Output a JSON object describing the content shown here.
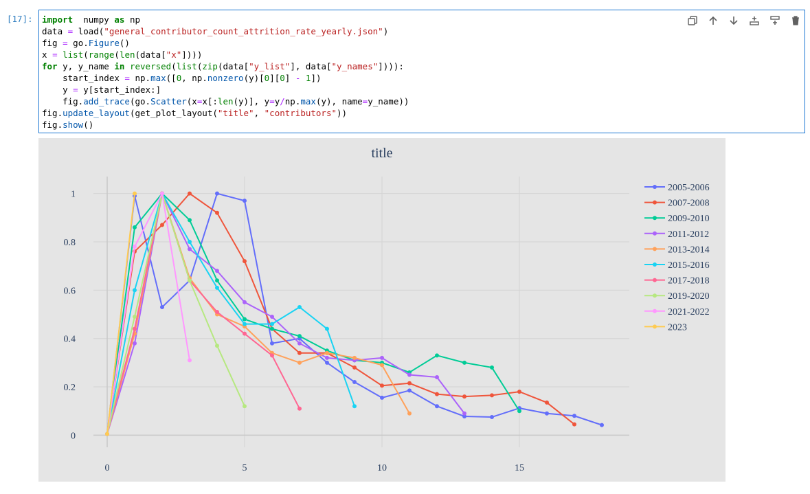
{
  "cell": {
    "prompt": "[17]:",
    "code_lines": [
      [
        [
          "kw",
          "import"
        ],
        [
          "",
          "  numpy "
        ],
        [
          "kw",
          "as"
        ],
        [
          "",
          " np"
        ]
      ],
      [
        [
          "",
          "data "
        ],
        [
          "op",
          "="
        ],
        [
          "",
          " load("
        ],
        [
          "st",
          "\"general_contributor_count_attrition_rate_yearly.json\""
        ],
        [
          "",
          ")"
        ]
      ],
      [
        [
          "",
          "fig "
        ],
        [
          "op",
          "="
        ],
        [
          "",
          " go."
        ],
        [
          "fn",
          "Figure"
        ],
        [
          "",
          "()"
        ]
      ],
      [
        [
          "",
          "x "
        ],
        [
          "op",
          "="
        ],
        [
          "",
          " "
        ],
        [
          "bi",
          "list"
        ],
        [
          "",
          "("
        ],
        [
          "bi",
          "range"
        ],
        [
          "",
          "("
        ],
        [
          "bi",
          "len"
        ],
        [
          "",
          "(data["
        ],
        [
          "st",
          "\"x\""
        ],
        [
          "",
          "])))"
        ]
      ],
      [
        [
          "kw",
          "for"
        ],
        [
          "",
          " y, y_name "
        ],
        [
          "kw",
          "in"
        ],
        [
          "",
          " "
        ],
        [
          "bi",
          "reversed"
        ],
        [
          "",
          "("
        ],
        [
          "bi",
          "list"
        ],
        [
          "",
          "("
        ],
        [
          "bi",
          "zip"
        ],
        [
          "",
          "(data["
        ],
        [
          "st",
          "\"y_list\""
        ],
        [
          "",
          "], data["
        ],
        [
          "st",
          "\"y_names\""
        ],
        [
          "",
          "]))):"
        ]
      ],
      [
        [
          "",
          "    start_index "
        ],
        [
          "op",
          "="
        ],
        [
          "",
          " np."
        ],
        [
          "fn",
          "max"
        ],
        [
          "",
          "(["
        ],
        [
          "nu",
          "0"
        ],
        [
          "",
          ", np."
        ],
        [
          "fn",
          "nonzero"
        ],
        [
          "",
          "(y)["
        ],
        [
          "nu",
          "0"
        ],
        [
          "",
          "]["
        ],
        [
          "nu",
          "0"
        ],
        [
          "",
          "] "
        ],
        [
          "op",
          "-"
        ],
        [
          "",
          " "
        ],
        [
          "nu",
          "1"
        ],
        [
          "",
          "])"
        ]
      ],
      [
        [
          "",
          "    y "
        ],
        [
          "op",
          "="
        ],
        [
          "",
          " y[start_index:]"
        ]
      ],
      [
        [
          "",
          "    fig."
        ],
        [
          "fn",
          "add_trace"
        ],
        [
          "",
          "(go."
        ],
        [
          "fn",
          "Scatter"
        ],
        [
          "",
          "(x"
        ],
        [
          "op",
          "="
        ],
        [
          "",
          "x[:"
        ],
        [
          "bi",
          "len"
        ],
        [
          "",
          "(y)], y"
        ],
        [
          "op",
          "="
        ],
        [
          "",
          "y"
        ],
        [
          "op",
          "/"
        ],
        [
          "",
          "np."
        ],
        [
          "fn",
          "max"
        ],
        [
          "",
          "(y), name"
        ],
        [
          "op",
          "="
        ],
        [
          "",
          "y_name))"
        ]
      ],
      [
        [
          "",
          "fig."
        ],
        [
          "fn",
          "update_layout"
        ],
        [
          "",
          "(get_plot_layout("
        ],
        [
          "st",
          "\"title\""
        ],
        [
          "",
          ", "
        ],
        [
          "st",
          "\"contributors\""
        ],
        [
          "",
          "))"
        ]
      ],
      [
        [
          "",
          "fig."
        ],
        [
          "fn",
          "show"
        ],
        [
          "",
          "()"
        ]
      ]
    ],
    "toolbar": [
      {
        "name": "duplicate-cell-button",
        "icon": "duplicate-icon"
      },
      {
        "name": "move-up-button",
        "icon": "arrow-up-icon"
      },
      {
        "name": "move-down-button",
        "icon": "arrow-down-icon"
      },
      {
        "name": "insert-above-button",
        "icon": "insert-above-icon"
      },
      {
        "name": "insert-below-button",
        "icon": "insert-below-icon"
      },
      {
        "name": "delete-cell-button",
        "icon": "trash-icon"
      }
    ]
  },
  "colors": {
    "plot_bg": "#e5e5e5",
    "grid": "#d4d4d4",
    "text": "#2a3f5f",
    "prompt": "#307fc1",
    "cell_border": "#1976d2"
  },
  "chart_data": {
    "type": "line",
    "title": "title",
    "xlabel": "",
    "ylabel": "",
    "xlim": [
      -0.5,
      19
    ],
    "ylim": [
      -0.05,
      1.07
    ],
    "xticks": [
      0,
      5,
      10,
      15
    ],
    "yticks": [
      0,
      0.2,
      0.4,
      0.6,
      0.8,
      1
    ],
    "ytick_labels": [
      "0",
      "0.2",
      "0.4",
      "0.6",
      "0.8",
      "1"
    ],
    "grid": true,
    "legend_position": "right",
    "series": [
      {
        "name": "2005-2006",
        "color": "#636efa",
        "x": [
          0,
          1,
          2,
          3,
          4,
          5,
          6,
          7,
          8,
          9,
          10,
          11,
          12,
          13,
          14,
          15,
          16,
          17,
          18
        ],
        "y": [
          0.005,
          0.99,
          0.53,
          0.64,
          1.0,
          0.97,
          0.38,
          0.4,
          0.3,
          0.22,
          0.155,
          0.185,
          0.12,
          0.078,
          0.075,
          0.112,
          0.09,
          0.08,
          0.042
        ]
      },
      {
        "name": "2007-2008",
        "color": "#ef553b",
        "x": [
          0,
          1,
          2,
          3,
          4,
          5,
          6,
          7,
          8,
          9,
          10,
          11,
          12,
          13,
          14,
          15,
          16,
          17
        ],
        "y": [
          0.005,
          0.76,
          0.87,
          1.0,
          0.92,
          0.72,
          0.44,
          0.34,
          0.34,
          0.28,
          0.205,
          0.215,
          0.17,
          0.16,
          0.165,
          0.18,
          0.135,
          0.045
        ]
      },
      {
        "name": "2009-2010",
        "color": "#00cc96",
        "x": [
          0,
          1,
          2,
          3,
          4,
          5,
          6,
          7,
          8,
          9,
          10,
          11,
          12,
          13,
          14,
          15
        ],
        "y": [
          0.005,
          0.86,
          1.0,
          0.89,
          0.64,
          0.48,
          0.44,
          0.41,
          0.35,
          0.31,
          0.3,
          0.26,
          0.33,
          0.3,
          0.28,
          0.1
        ]
      },
      {
        "name": "2011-2012",
        "color": "#ab63fa",
        "x": [
          0,
          1,
          2,
          3,
          4,
          5,
          6,
          7,
          8,
          9,
          10,
          11,
          12,
          13
        ],
        "y": [
          0.005,
          0.38,
          1.0,
          0.77,
          0.68,
          0.55,
          0.49,
          0.38,
          0.32,
          0.31,
          0.32,
          0.25,
          0.24,
          0.09
        ]
      },
      {
        "name": "2013-2014",
        "color": "#ffa15a",
        "x": [
          0,
          1,
          2,
          3,
          4,
          5,
          6,
          7,
          8,
          9,
          10,
          11
        ],
        "y": [
          0.005,
          0.42,
          1.0,
          0.65,
          0.5,
          0.45,
          0.34,
          0.3,
          0.34,
          0.32,
          0.29,
          0.09
        ]
      },
      {
        "name": "2015-2016",
        "color": "#19d3f3",
        "x": [
          0,
          1,
          2,
          3,
          4,
          5,
          6,
          7,
          8,
          9
        ],
        "y": [
          0.005,
          0.6,
          1.0,
          0.8,
          0.61,
          0.46,
          0.46,
          0.53,
          0.44,
          0.12
        ]
      },
      {
        "name": "2017-2018",
        "color": "#ff6692",
        "x": [
          0,
          1,
          2,
          3,
          4,
          5,
          6,
          7
        ],
        "y": [
          0.005,
          0.44,
          1.0,
          0.64,
          0.51,
          0.42,
          0.33,
          0.11
        ]
      },
      {
        "name": "2019-2020",
        "color": "#b6e880",
        "x": [
          0,
          1,
          2,
          3,
          4,
          5
        ],
        "y": [
          0.005,
          0.49,
          1.0,
          0.64,
          0.37,
          0.12
        ]
      },
      {
        "name": "2021-2022",
        "color": "#ff97ff",
        "x": [
          0,
          1,
          2,
          3
        ],
        "y": [
          0.005,
          0.78,
          1.0,
          0.31
        ]
      },
      {
        "name": "2023",
        "color": "#fecb52",
        "x": [
          0,
          1
        ],
        "y": [
          0.005,
          1.0
        ]
      }
    ]
  }
}
